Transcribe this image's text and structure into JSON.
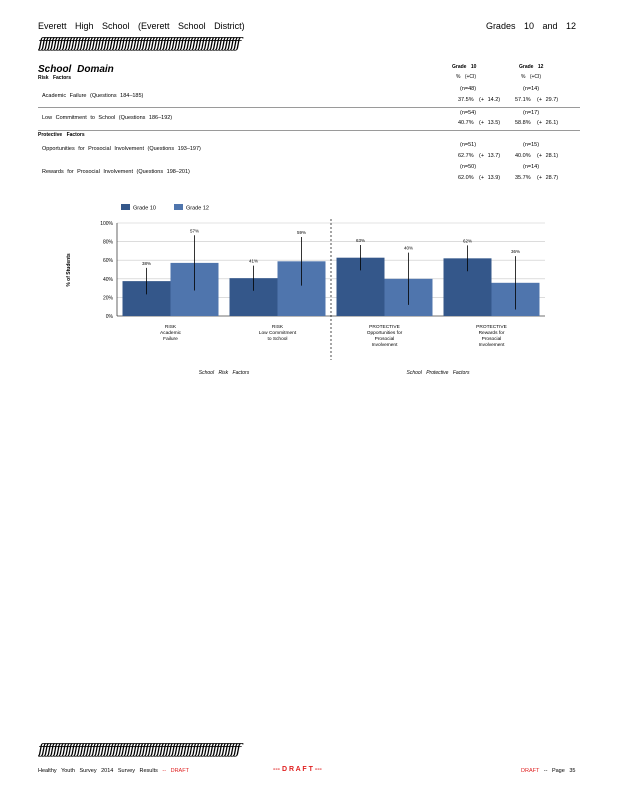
{
  "header": {
    "school": "Everett High School (Everett School District)",
    "grades": "Grades 10 and 12",
    "rule": "ƒƒƒƒƒƒƒƒƒƒƒƒƒƒƒƒƒƒƒƒƒƒƒƒƒƒƒƒƒƒƒƒƒƒƒƒƒƒƒƒƒƒƒƒƒƒƒƒƒƒƒƒƒƒƒƒƒƒƒƒƒƒƒƒƒƒƒƒ"
  },
  "domain": {
    "title": "School Domain",
    "col1_title": "Grade 10",
    "col2_title": "Grade 12",
    "col_sub": "% (+CI)",
    "risk_label": "Risk Factors",
    "protective_label": "Protective Factors",
    "rows": [
      {
        "label": "Academic Failure (Questions 184–185)",
        "n1": "(n=48)",
        "v1": "37.5%",
        "ci1": "(+ 14.2)",
        "n2": "(n=14)",
        "v2": "57.1%",
        "ci2": "(+ 29.7)"
      },
      {
        "label": "Low Commitment to School (Questions 186–192)",
        "n1": "(n=54)",
        "v1": "40.7%",
        "ci1": "(+ 13.5)",
        "n2": "(n=17)",
        "v2": "58.8%",
        "ci2": "(+ 26.1)"
      },
      {
        "label": "Opportunities for Prosocial Involvement (Questions 193–197)",
        "n1": "(n=51)",
        "v1": "62.7%",
        "ci1": "(+ 13.7)",
        "n2": "(n=15)",
        "v2": "40.0%",
        "ci2": "(+ 28.1)"
      },
      {
        "label": "Rewards for Prosocial Involvement (Questions 198–201)",
        "n1": "(n=50)",
        "v1": "62.0%",
        "ci1": "(+ 13.9)",
        "n2": "(n=14)",
        "v2": "35.7%",
        "ci2": "(+ 28.7)"
      }
    ]
  },
  "chart_data": {
    "type": "bar",
    "ylabel": "% of Students",
    "yticks": [
      "100%",
      "80%",
      "60%",
      "40%",
      "20%",
      "0%"
    ],
    "ylim": [
      0,
      100
    ],
    "categories": [
      [
        "RISK",
        "Academic",
        "Failure"
      ],
      [
        "RISK",
        "Low Commitment",
        "to School"
      ],
      [
        "PROTECTIVE",
        "Opportunities for",
        "Prosocial",
        "Involvement"
      ],
      [
        "PROTECTIVE",
        "Rewards for",
        "Prosocial",
        "Involvement"
      ]
    ],
    "series": [
      {
        "name": "Grade 10",
        "color": "#34578a",
        "values": [
          37.5,
          40.7,
          62.7,
          62.0
        ],
        "ci": [
          14.2,
          13.5,
          13.7,
          13.9
        ],
        "labels": [
          "38%",
          "41%",
          "63%",
          "62%"
        ]
      },
      {
        "name": "Grade 12",
        "color": "#4f75ad",
        "values": [
          57.1,
          58.8,
          40.0,
          35.7
        ],
        "ci": [
          29.7,
          26.1,
          28.1,
          28.7
        ],
        "labels": [
          "57%",
          "59%",
          "40%",
          "36%"
        ]
      }
    ],
    "group_labels": [
      "School Risk Factors",
      "School Protective Factors"
    ],
    "grid": true,
    "legend": "top-left"
  },
  "footer": {
    "left": "Healthy Youth Survey 2014 Survey Results",
    "left_draft": "-- DRAFT",
    "center": "--- D R A F T ---",
    "right_draft": "DRAFT",
    "page": "-- Page 35"
  }
}
